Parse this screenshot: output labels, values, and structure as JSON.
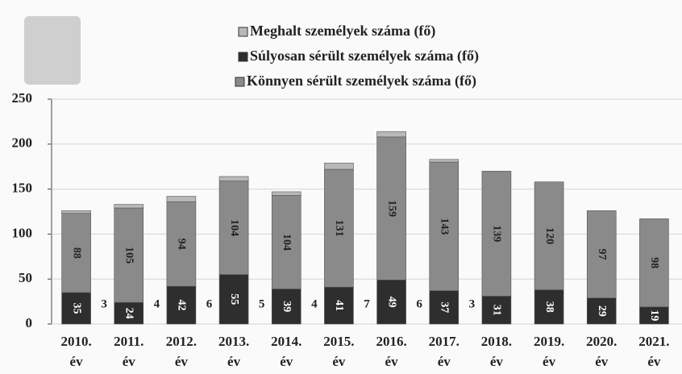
{
  "chart_data": {
    "type": "stacked-bar",
    "categories": [
      [
        "2010.",
        "év"
      ],
      [
        "2011.",
        "év"
      ],
      [
        "2012.",
        "év"
      ],
      [
        "2013.",
        "év"
      ],
      [
        "2014.",
        "év"
      ],
      [
        "2015.",
        "év"
      ],
      [
        "2016.",
        "év"
      ],
      [
        "2017.",
        "év"
      ],
      [
        "2018.",
        "év"
      ],
      [
        "2019.",
        "év"
      ],
      [
        "2020.",
        "év"
      ],
      [
        "2021.",
        "év"
      ]
    ],
    "series": [
      {
        "name": "Meghalt személyek száma (fő)",
        "color": "#b8b8b8",
        "values": [
          3,
          4,
          6,
          5,
          4,
          7,
          6,
          3,
          null,
          null,
          null,
          null
        ]
      },
      {
        "name": "Súlyosan sérült személyek száma (fő)",
        "color": "#2e2e2e",
        "values": [
          35,
          24,
          42,
          55,
          39,
          41,
          49,
          37,
          31,
          38,
          29,
          19
        ]
      },
      {
        "name": "Könnyen sérült személyek száma (fő)",
        "color": "#8a8a8a",
        "values": [
          88,
          105,
          94,
          104,
          104,
          131,
          159,
          143,
          139,
          120,
          97,
          98
        ]
      }
    ],
    "ylim": [
      0,
      250
    ],
    "yticks": [
      0,
      50,
      100,
      150,
      200,
      250
    ],
    "grid": true
  }
}
